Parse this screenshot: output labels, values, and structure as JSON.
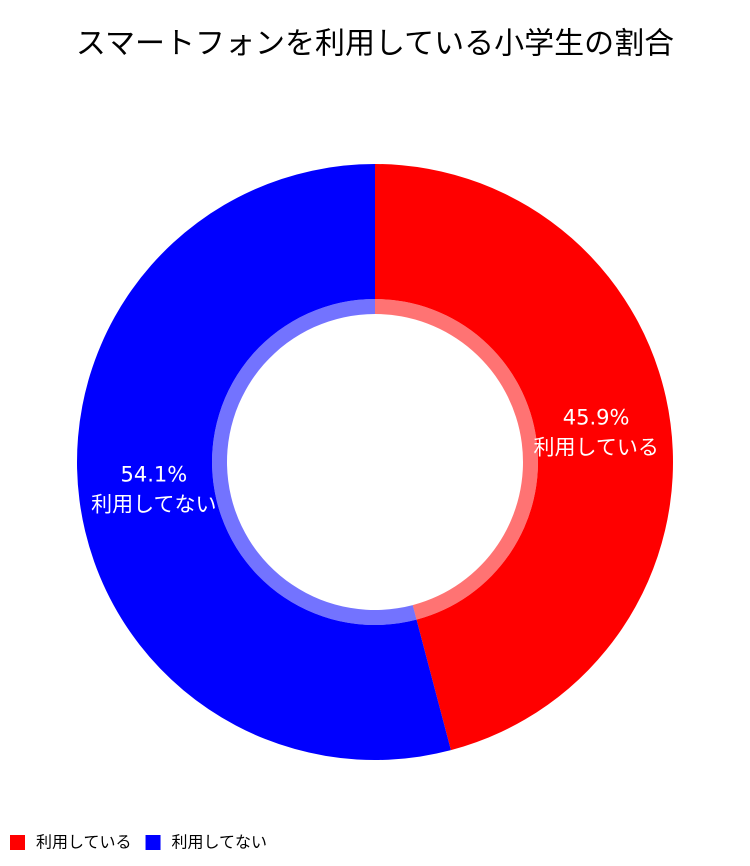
{
  "chart_data": {
    "type": "donut",
    "title": "スマートフォンを利用している小学生の割合",
    "categories": [
      "利用している",
      "利用してない"
    ],
    "values": [
      45.9,
      54.1
    ],
    "value_labels": [
      "45.9%",
      "54.1%"
    ],
    "colors": [
      "#ff0000",
      "#0000ff"
    ]
  }
}
